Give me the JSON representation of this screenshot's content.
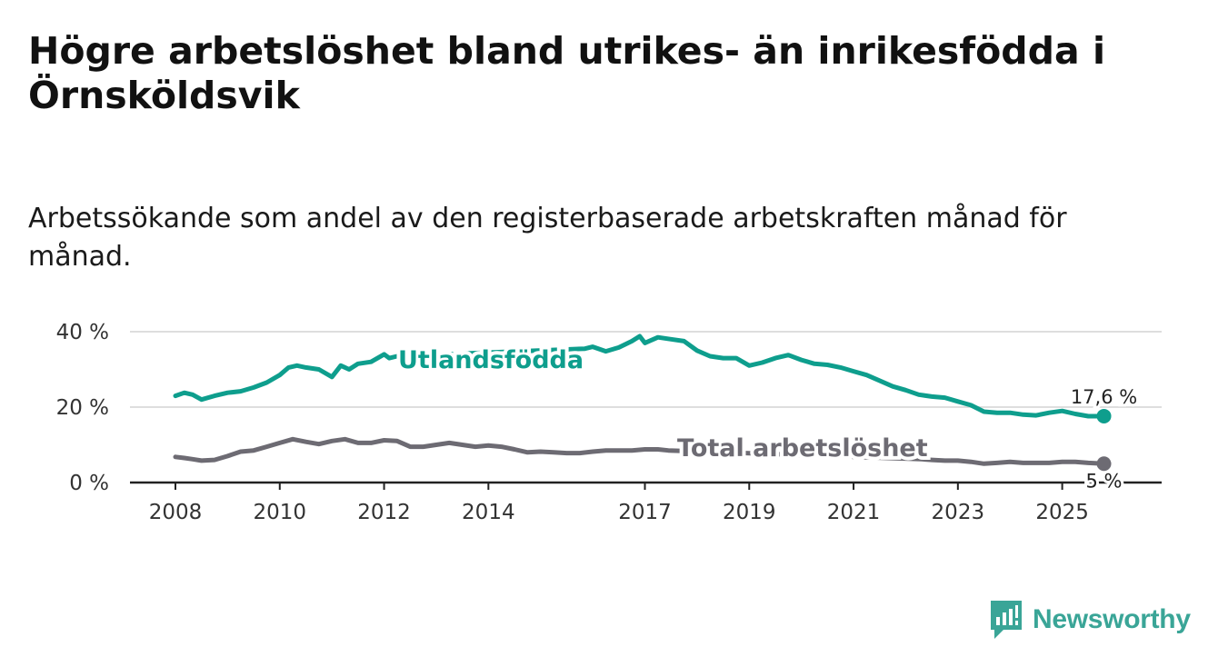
{
  "title": "Högre arbetslöshet bland utrikes- än inrikesfödda i Örnsköldsvik",
  "subtitle": "Arbetssökande som andel av den registerbaserade arbetskraften månad för månad.",
  "brand": {
    "name": "Newsworthy",
    "icon": "newsworthy-logo-icon"
  },
  "colors": {
    "utlandsfodda": "#0e9e8d",
    "total": "#6d6b73",
    "grid": "#dedede",
    "axis": "#222222"
  },
  "chart_data": {
    "type": "line",
    "title": "Högre arbetslöshet bland utrikes- än inrikesfödda i Örnsköldsvik",
    "xlabel": "",
    "ylabel": "",
    "xlim": [
      2008,
      2026
    ],
    "ylim": [
      0,
      40
    ],
    "y_ticks": [
      0,
      20,
      40
    ],
    "y_tick_labels": [
      "0 %",
      "20 %",
      "40 %"
    ],
    "x_ticks": [
      2008,
      2010,
      2012,
      2014,
      2017,
      2019,
      2021,
      2023,
      2025
    ],
    "x_tick_labels": [
      "2008",
      "2010",
      "2012",
      "2014",
      "2017",
      "2019",
      "2021",
      "2023",
      "2025"
    ],
    "grid": true,
    "series": [
      {
        "name": "Utlandsfödda",
        "end_label": "17,6 %",
        "x": [
          2008.0,
          2008.17,
          2008.33,
          2008.5,
          2008.75,
          2009.0,
          2009.25,
          2009.5,
          2009.75,
          2010.0,
          2010.17,
          2010.33,
          2010.5,
          2010.75,
          2011.0,
          2011.17,
          2011.33,
          2011.5,
          2011.75,
          2012.0,
          2012.1,
          2012.25,
          2015.85,
          2016.0,
          2016.25,
          2016.5,
          2016.75,
          2016.9,
          2017.0,
          2017.25,
          2017.5,
          2017.75,
          2018.0,
          2018.25,
          2018.5,
          2018.75,
          2019.0,
          2019.25,
          2019.5,
          2019.75,
          2020.0,
          2020.25,
          2020.5,
          2020.75,
          2021.0,
          2021.25,
          2021.5,
          2021.75,
          2022.0,
          2022.25,
          2022.5,
          2022.75,
          2023.0,
          2023.25,
          2023.5,
          2023.75,
          2024.0,
          2024.25,
          2024.5,
          2024.75,
          2025.0,
          2025.25,
          2025.5,
          2025.8
        ],
        "values": [
          23.0,
          23.8,
          23.3,
          22.0,
          23.0,
          23.8,
          24.2,
          25.2,
          26.5,
          28.5,
          30.5,
          31.0,
          30.5,
          30.0,
          28.0,
          31.0,
          30.0,
          31.5,
          32.0,
          34.0,
          33.0,
          33.5,
          35.5,
          36.0,
          34.8,
          35.8,
          37.5,
          38.8,
          37.0,
          38.5,
          38.0,
          37.5,
          35.0,
          33.5,
          33.0,
          33.0,
          31.0,
          31.8,
          33.0,
          33.8,
          32.5,
          31.5,
          31.2,
          30.5,
          29.5,
          28.5,
          27.0,
          25.5,
          24.5,
          23.3,
          22.8,
          22.5,
          21.5,
          20.5,
          18.8,
          18.5,
          18.5,
          18.0,
          17.8,
          18.5,
          19.0,
          18.2,
          17.6,
          17.6
        ]
      },
      {
        "name": "Total arbetslöshet",
        "end_label": "5 %",
        "x": [
          2008.0,
          2008.17,
          2008.33,
          2008.5,
          2008.75,
          2009.0,
          2009.25,
          2009.5,
          2009.75,
          2010.0,
          2010.25,
          2010.5,
          2010.75,
          2011.0,
          2011.25,
          2011.5,
          2011.75,
          2012.0,
          2012.25,
          2012.5,
          2012.75,
          2013.0,
          2013.25,
          2013.5,
          2013.75,
          2014.0,
          2014.25,
          2014.5,
          2014.75,
          2015.0,
          2015.25,
          2015.5,
          2015.75,
          2016.0,
          2016.25,
          2016.5,
          2016.75,
          2017.0,
          2017.25,
          2017.45,
          2022.3,
          2022.5,
          2022.75,
          2023.0,
          2023.25,
          2023.5,
          2023.75,
          2024.0,
          2024.25,
          2024.5,
          2024.75,
          2025.0,
          2025.25,
          2025.5,
          2025.8
        ],
        "values": [
          6.8,
          6.5,
          6.2,
          5.8,
          6.0,
          7.0,
          8.2,
          8.5,
          9.5,
          10.5,
          11.5,
          10.8,
          10.2,
          11.0,
          11.5,
          10.5,
          10.5,
          11.2,
          11.0,
          9.5,
          9.5,
          10.0,
          10.5,
          10.0,
          9.5,
          9.8,
          9.5,
          8.8,
          8.0,
          8.2,
          8.0,
          7.8,
          7.8,
          8.2,
          8.5,
          8.5,
          8.5,
          8.8,
          8.8,
          8.5,
          6.2,
          6.0,
          5.8,
          5.8,
          5.5,
          5.0,
          5.2,
          5.5,
          5.2,
          5.2,
          5.2,
          5.5,
          5.5,
          5.2,
          5.0
        ]
      }
    ]
  }
}
